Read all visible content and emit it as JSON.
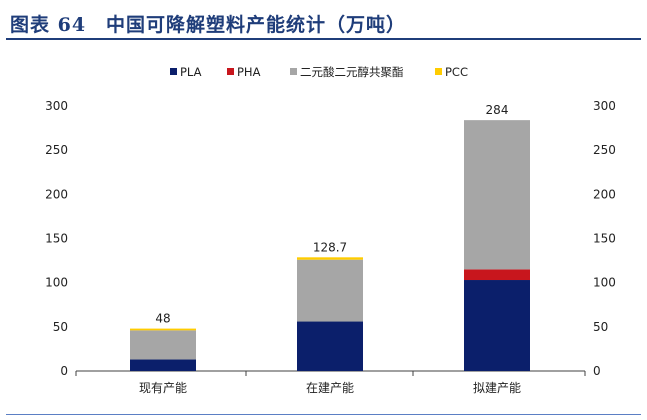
{
  "figure": {
    "title": "图表 64　中国可降解塑料产能统计（万吨）"
  },
  "colors": {
    "title": "#1f3d7a",
    "axis": "#404040"
  },
  "chart_data": {
    "type": "bar",
    "stacked": true,
    "categories": [
      "现有产能",
      "在建产能",
      "拟建产能"
    ],
    "series": [
      {
        "name": "PLA",
        "color": "#0b1f6b",
        "values": [
          13,
          56,
          103
        ]
      },
      {
        "name": "PHA",
        "color": "#c8161d",
        "values": [
          0,
          0,
          12
        ]
      },
      {
        "name": "二元酸二元醇共聚酯",
        "color": "#a6a6a6",
        "values": [
          33,
          70,
          169
        ]
      },
      {
        "name": "PCC",
        "color": "#ffcc00",
        "values": [
          2,
          2.7,
          0
        ]
      }
    ],
    "totals": [
      "48",
      "128.7",
      "284"
    ],
    "ylim": [
      0,
      300
    ],
    "yticks": [
      0,
      50,
      100,
      150,
      200,
      250,
      300
    ],
    "secondary_yticks": [
      0,
      50,
      100,
      150,
      200,
      250,
      300
    ],
    "legend_position": "top",
    "grid": false
  }
}
